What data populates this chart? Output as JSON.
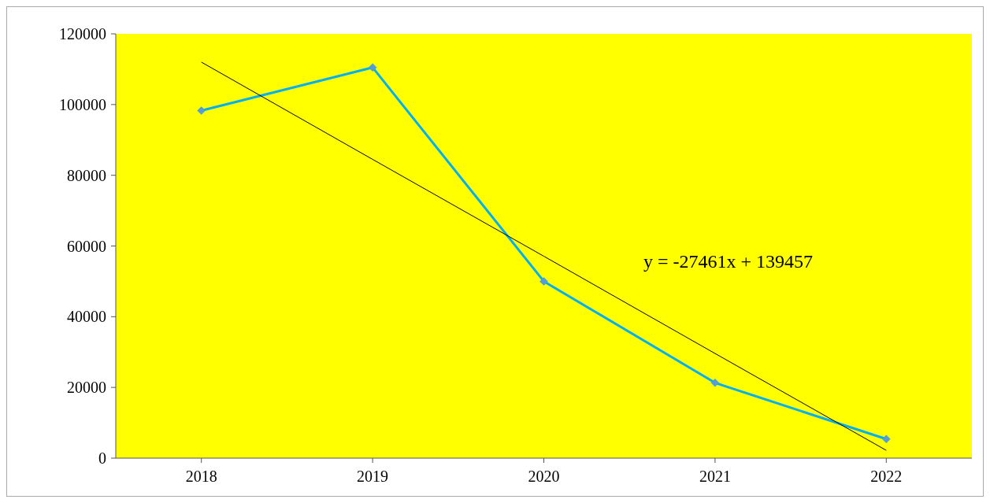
{
  "chart_data": {
    "type": "line",
    "categories": [
      "2018",
      "2019",
      "2020",
      "2021",
      "2022"
    ],
    "series": [
      {
        "color": "#00b0f0",
        "values": [
          98300,
          110500,
          50000,
          21300,
          5400
        ],
        "marker": "diamond"
      },
      {
        "type": "line",
        "color": "#000000",
        "values": [
          112000,
          84500,
          57100,
          29600,
          2200
        ],
        "marker": "none"
      }
    ],
    "ylim": [
      0,
      120000
    ],
    "yticks": [
      0,
      20000,
      40000,
      60000,
      80000,
      100000,
      120000
    ],
    "grid": false,
    "annotations": [
      "y = -27461x + 139457"
    ]
  }
}
